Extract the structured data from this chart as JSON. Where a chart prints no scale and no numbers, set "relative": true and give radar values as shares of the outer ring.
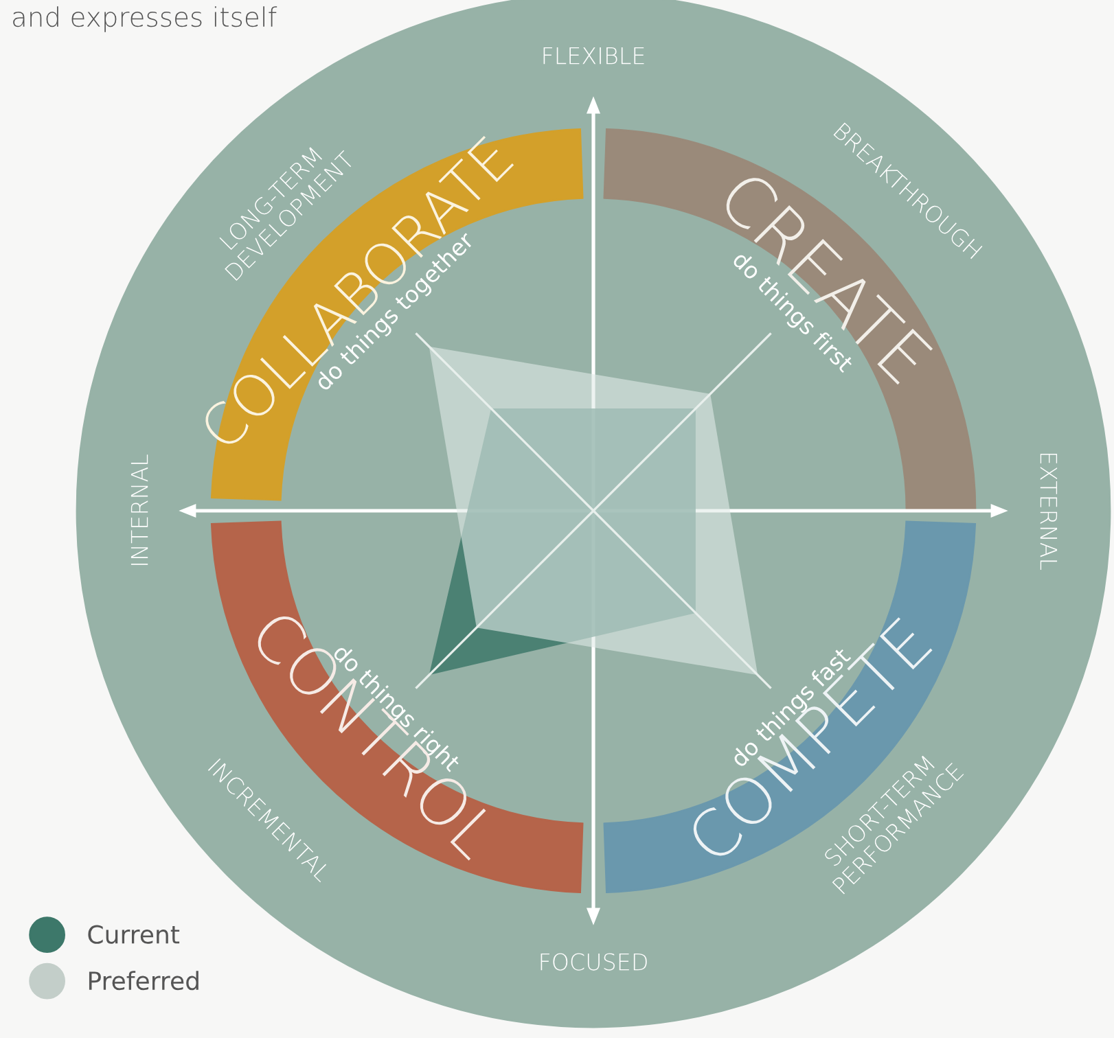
{
  "chart_data": {
    "type": "radar",
    "relative": true,
    "grid": true,
    "legend": "bottom left",
    "categories": [
      "do things first",
      "do things fast",
      "do things right",
      "do things together"
    ],
    "series": [
      {
        "name": "Current",
        "color": "#3d786a",
        "values": [
          0.28,
          0.28,
          0.45,
          0.28
        ]
      },
      {
        "name": "Preferred",
        "color": "#c3cec9",
        "values": [
          0.32,
          0.45,
          0.32,
          0.45
        ]
      }
    ],
    "annotations": [
      "and expresses itself",
      "FLEXIBLE",
      "EXTERNAL",
      "FOCUSED",
      "INTERNAL",
      "BREAKTHROUGH",
      "SHORT-TERM\nPERFORMANCE",
      "INCREMENTAL",
      "LONG-TERM\nDEVELOPMENT",
      "CREATE",
      "COMPETE",
      "CONTROL",
      "COLLABORATE"
    ]
  }
}
